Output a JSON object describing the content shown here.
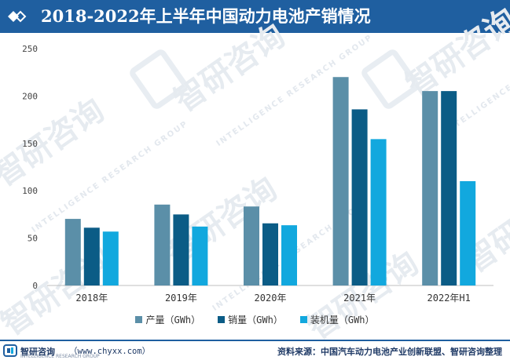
{
  "header": {
    "title": "2018-2022年上半年中国动力电池产销情况"
  },
  "watermark": {
    "brand": "智研咨询",
    "sub": "INTELLIGENCE RESEARCH GROUP"
  },
  "legend": {
    "items": [
      "产量（GWh）",
      "销量（GWh）",
      "装机量（GWh）"
    ]
  },
  "footer": {
    "brand": "智研咨询",
    "site": "（www.chyxx.com）",
    "sub": "INTELLIGENCE RESEARCH GROUP",
    "source": "资料来源：中国汽车动力电池产业创新联盟、智研咨询整理"
  },
  "colors": {
    "header_bg": "#1f5fa0",
    "series": [
      "#5b8fa8",
      "#0b5c86",
      "#12a8de"
    ]
  },
  "chart_data": {
    "type": "bar",
    "categories": [
      "2018年",
      "2019年",
      "2020年",
      "2021年",
      "2022年H1"
    ],
    "series": [
      {
        "name": "产量（GWh）",
        "values": [
          70.3,
          85.4,
          83.4,
          220.0,
          205.2
        ]
      },
      {
        "name": "销量（GWh）",
        "values": [
          61.0,
          75.0,
          65.6,
          185.9,
          205.2
        ]
      },
      {
        "name": "装机量（GWh）",
        "values": [
          56.9,
          62.2,
          63.6,
          154.5,
          110.1
        ]
      }
    ],
    "ylim": [
      0,
      250
    ],
    "yticks": [
      0,
      50,
      100,
      150,
      200,
      250
    ],
    "grid": false,
    "legend": "bottom"
  }
}
